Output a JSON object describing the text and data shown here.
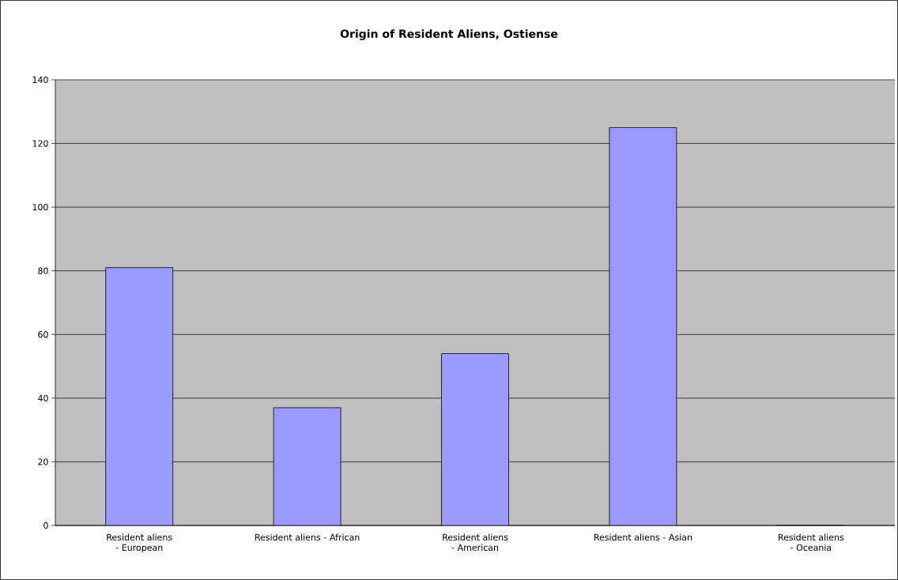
{
  "chart_data": {
    "type": "bar",
    "title": "Origin of Resident Aliens, Ostiense",
    "categories": [
      "Resident aliens - European",
      "Resident aliens - African",
      "Resident aliens - American",
      "Resident aliens - Asian",
      "Resident aliens - Oceania"
    ],
    "values": [
      81,
      37,
      54,
      125,
      0
    ],
    "color": "#9999ff",
    "ylim": [
      0,
      140
    ],
    "yticks": [
      0,
      20,
      40,
      60,
      80,
      100,
      120,
      140
    ],
    "grid": "y"
  }
}
